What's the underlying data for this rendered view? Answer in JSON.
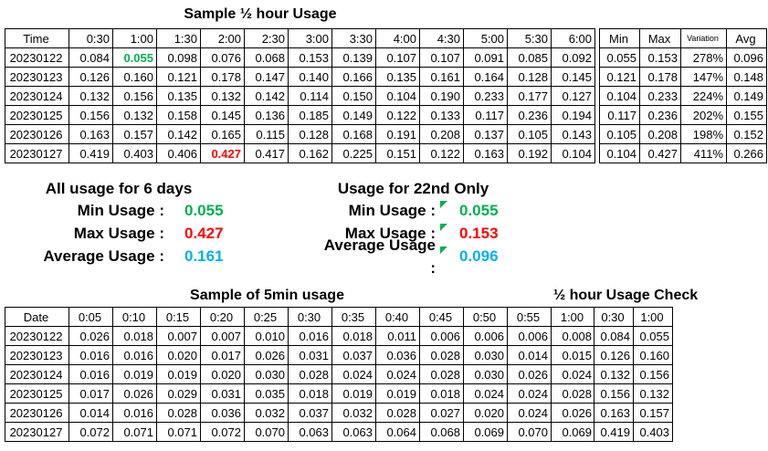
{
  "colors": {
    "min_green": "#00B050",
    "max_red": "#FF0000",
    "avg_blue": "#00B0F0",
    "text": "#000000",
    "grid": "#000000"
  },
  "half_hour_table": {
    "title": "Sample ½ hour Usage",
    "header": [
      "Time",
      "0:30",
      "1:00",
      "1:30",
      "2:00",
      "2:30",
      "3:00",
      "3:30",
      "4:00",
      "4:30",
      "5:00",
      "5:30",
      "6:00"
    ],
    "rows": [
      [
        "20230122",
        "0.084",
        "0.055",
        "0.098",
        "0.076",
        "0.068",
        "0.153",
        "0.139",
        "0.107",
        "0.107",
        "0.091",
        "0.085",
        "0.092"
      ],
      [
        "20230123",
        "0.126",
        "0.160",
        "0.121",
        "0.178",
        "0.147",
        "0.140",
        "0.166",
        "0.135",
        "0.161",
        "0.164",
        "0.128",
        "0.145"
      ],
      [
        "20230124",
        "0.132",
        "0.156",
        "0.135",
        "0.132",
        "0.142",
        "0.114",
        "0.150",
        "0.104",
        "0.190",
        "0.233",
        "0.177",
        "0.127"
      ],
      [
        "20230125",
        "0.156",
        "0.132",
        "0.158",
        "0.145",
        "0.136",
        "0.185",
        "0.149",
        "0.122",
        "0.133",
        "0.117",
        "0.236",
        "0.194"
      ],
      [
        "20230126",
        "0.163",
        "0.157",
        "0.142",
        "0.165",
        "0.115",
        "0.128",
        "0.168",
        "0.191",
        "0.208",
        "0.137",
        "0.105",
        "0.143"
      ],
      [
        "20230127",
        "0.419",
        "0.403",
        "0.406",
        "0.427",
        "0.417",
        "0.162",
        "0.225",
        "0.151",
        "0.122",
        "0.163",
        "0.192",
        "0.104"
      ]
    ],
    "highlights": [
      {
        "row": 0,
        "col": 2,
        "color": "green"
      },
      {
        "row": 5,
        "col": 4,
        "color": "red"
      }
    ]
  },
  "stats_table": {
    "header": [
      "Min",
      "Max",
      "Variation",
      "Avg"
    ],
    "rows": [
      [
        "0.055",
        "0.153",
        "278%",
        "0.096"
      ],
      [
        "0.121",
        "0.178",
        "147%",
        "0.148"
      ],
      [
        "0.104",
        "0.233",
        "224%",
        "0.149"
      ],
      [
        "0.117",
        "0.236",
        "202%",
        "0.155"
      ],
      [
        "0.105",
        "0.208",
        "198%",
        "0.152"
      ],
      [
        "0.104",
        "0.427",
        "411%",
        "0.266"
      ]
    ]
  },
  "summary_all_days": {
    "title": "All usage for 6 days",
    "rows": [
      {
        "label": "Min Usage :",
        "value": "0.055",
        "color": "green"
      },
      {
        "label": "Max Usage :",
        "value": "0.427",
        "color": "red"
      },
      {
        "label": "Average Usage :",
        "value": "0.161",
        "color": "blue"
      }
    ]
  },
  "summary_22nd": {
    "title": "Usage for 22nd Only",
    "rows": [
      {
        "label": "Min Usage :",
        "value": "0.055",
        "color": "green",
        "flag": true
      },
      {
        "label": "Max Usage :",
        "value": "0.153",
        "color": "red",
        "flag": true
      },
      {
        "label": "Average Usage :",
        "value": "0.096",
        "color": "blue",
        "flag": true
      }
    ]
  },
  "five_min_table": {
    "title": "Sample of 5min usage",
    "header": [
      "Date",
      "0:05",
      "0:10",
      "0:15",
      "0:20",
      "0:25",
      "0:30",
      "0:35",
      "0:40",
      "0:45",
      "0:50",
      "0:55",
      "1:00"
    ],
    "rows": [
      [
        "20230122",
        "0.026",
        "0.018",
        "0.007",
        "0.007",
        "0.010",
        "0.016",
        "0.018",
        "0.011",
        "0.006",
        "0.006",
        "0.006",
        "0.008"
      ],
      [
        "20230123",
        "0.016",
        "0.016",
        "0.020",
        "0.017",
        "0.026",
        "0.031",
        "0.037",
        "0.036",
        "0.028",
        "0.030",
        "0.014",
        "0.015"
      ],
      [
        "20230124",
        "0.016",
        "0.019",
        "0.019",
        "0.020",
        "0.030",
        "0.028",
        "0.024",
        "0.024",
        "0.028",
        "0.030",
        "0.026",
        "0.024"
      ],
      [
        "20230125",
        "0.017",
        "0.026",
        "0.029",
        "0.031",
        "0.035",
        "0.018",
        "0.019",
        "0.019",
        "0.018",
        "0.024",
        "0.024",
        "0.028"
      ],
      [
        "20230126",
        "0.014",
        "0.016",
        "0.028",
        "0.036",
        "0.032",
        "0.037",
        "0.032",
        "0.028",
        "0.027",
        "0.020",
        "0.024",
        "0.026"
      ],
      [
        "20230127",
        "0.072",
        "0.071",
        "0.071",
        "0.072",
        "0.070",
        "0.063",
        "0.063",
        "0.064",
        "0.068",
        "0.069",
        "0.070",
        "0.069"
      ]
    ]
  },
  "check_table": {
    "title": "½ hour Usage Check",
    "header": [
      "0:30",
      "1:00"
    ],
    "rows": [
      [
        "0.084",
        "0.055"
      ],
      [
        "0.126",
        "0.160"
      ],
      [
        "0.132",
        "0.156"
      ],
      [
        "0.156",
        "0.132"
      ],
      [
        "0.163",
        "0.157"
      ],
      [
        "0.419",
        "0.403"
      ]
    ]
  }
}
